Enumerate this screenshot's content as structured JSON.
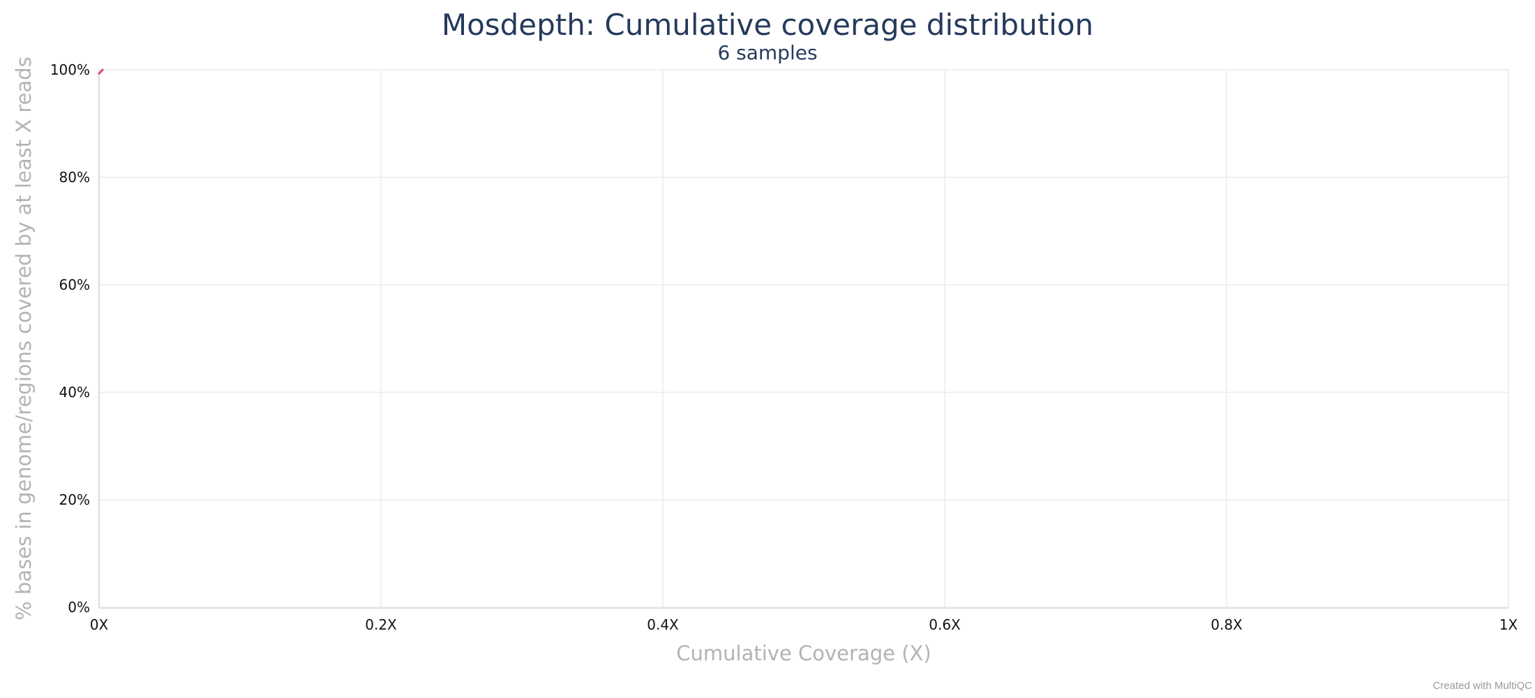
{
  "chart_data": {
    "type": "line",
    "title": "Mosdepth: Cumulative coverage distribution",
    "subtitle": "6 samples",
    "xlabel": "Cumulative Coverage (X)",
    "ylabel": "% bases in genome/regions covered by at least X reads",
    "xlim": [
      0,
      1
    ],
    "ylim": [
      0,
      100
    ],
    "x_ticks": [
      {
        "value": 0,
        "label": "0X"
      },
      {
        "value": 0.2,
        "label": "0.2X"
      },
      {
        "value": 0.4,
        "label": "0.4X"
      },
      {
        "value": 0.6,
        "label": "0.6X"
      },
      {
        "value": 0.8,
        "label": "0.8X"
      },
      {
        "value": 1,
        "label": "1X"
      }
    ],
    "y_ticks": [
      {
        "value": 0,
        "label": "0%"
      },
      {
        "value": 20,
        "label": "20%"
      },
      {
        "value": 40,
        "label": "40%"
      },
      {
        "value": 60,
        "label": "60%"
      },
      {
        "value": 80,
        "label": "80%"
      },
      {
        "value": 100,
        "label": "100%"
      }
    ],
    "grid": true,
    "series": [
      {
        "color": "#e8436b",
        "points": [
          {
            "x": 0,
            "y": 99.3
          },
          {
            "x": 0.0025,
            "y": 100
          }
        ]
      }
    ]
  },
  "footer": {
    "credit": "Created with MultiQC"
  }
}
